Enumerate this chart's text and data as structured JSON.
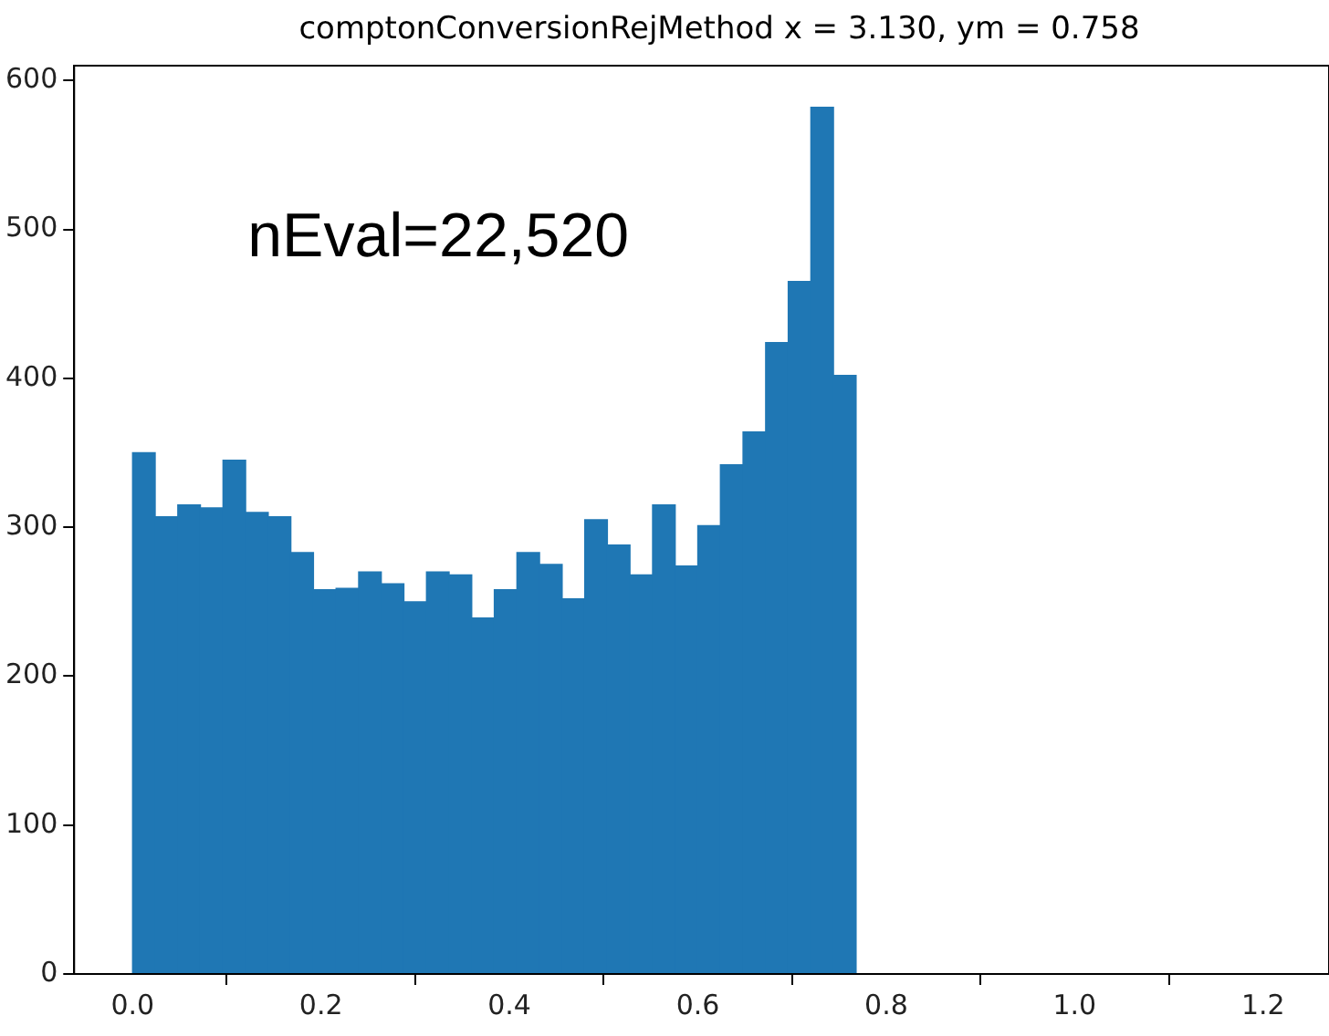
{
  "chart_data": {
    "type": "histogram",
    "title": "comptonConversionRejMethod x = 3.130,  ym = 0.758",
    "bins": [
      0,
      0.024,
      0.048,
      0.072,
      0.096,
      0.12,
      0.144,
      0.168,
      0.192,
      0.216,
      0.24,
      0.264,
      0.288,
      0.312,
      0.336,
      0.36,
      0.384,
      0.408,
      0.432,
      0.456,
      0.48,
      0.504,
      0.528,
      0.552,
      0.576,
      0.6,
      0.624,
      0.648,
      0.672,
      0.696,
      0.72,
      0.744,
      0.768
    ],
    "values": [
      350,
      307,
      315,
      313,
      345,
      310,
      307,
      283,
      258,
      259,
      270,
      262,
      250,
      270,
      268,
      239,
      258,
      283,
      275,
      252,
      305,
      288,
      268,
      315,
      274,
      301,
      342,
      364,
      424,
      465,
      582,
      402
    ],
    "color": "#1f77b4",
    "xlim": [
      -0.062,
      1.27
    ],
    "xticks": [
      {
        "value": 0,
        "label": "0.0"
      },
      0.2,
      0.4,
      0.6,
      0.8,
      {
        "value": 1,
        "label": "1.0"
      },
      1.2
    ],
    "ylim": [
      0,
      610
    ],
    "yticks": [
      0,
      100,
      200,
      300,
      400,
      500,
      600
    ],
    "grid": false,
    "legend": false,
    "annotations": [
      "nEval=22,520"
    ]
  }
}
